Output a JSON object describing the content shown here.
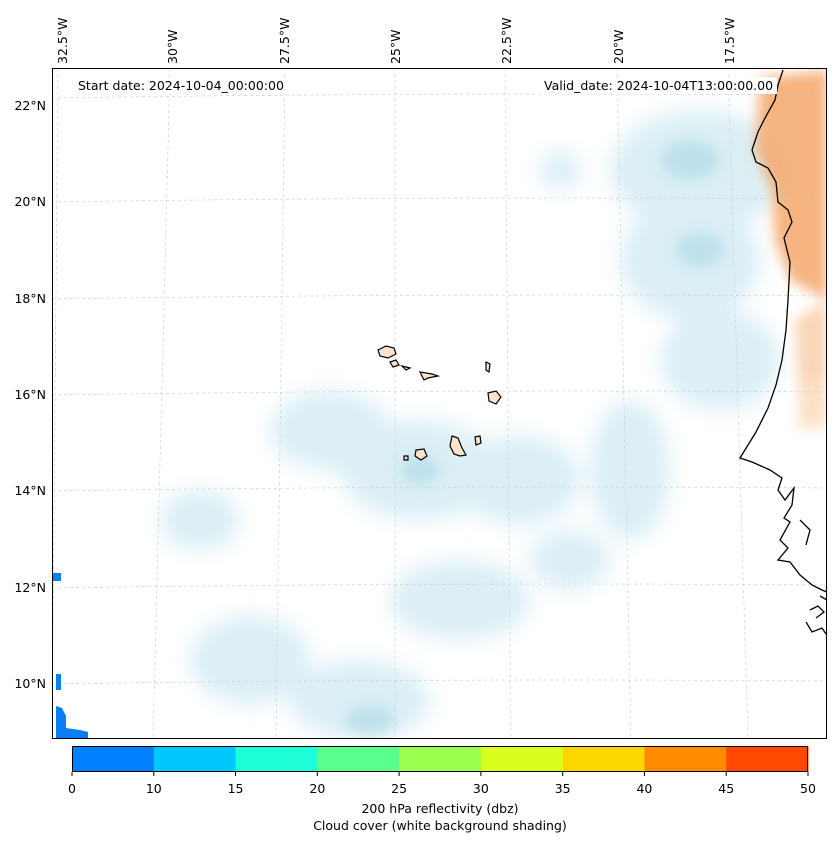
{
  "map": {
    "start_date": "Start date: 2024-10-04_00:00:00",
    "valid_date": "Valid_date: 2024-10-04T13:00:00.00",
    "lon_labels": [
      "32.5°W",
      "30°W",
      "27.5°W",
      "25°W",
      "22.5°W",
      "20°W",
      "17.5°W"
    ],
    "lat_labels": [
      "22°N",
      "20°N",
      "18°N",
      "16°N",
      "14°N",
      "12°N",
      "10°N"
    ]
  },
  "colorbar": {
    "ticks": [
      "0",
      "10",
      "15",
      "20",
      "25",
      "30",
      "35",
      "40",
      "45",
      "50"
    ],
    "colors": [
      "#0080ff",
      "#00c8ff",
      "#1effd8",
      "#5aff8c",
      "#9bff50",
      "#d8ff1e",
      "#ffd700",
      "#ff8c00",
      "#ff4800"
    ],
    "title_line1": "200 hPa reflectivity (dbz)",
    "title_line2": "Cloud cover (white background shading)"
  }
}
